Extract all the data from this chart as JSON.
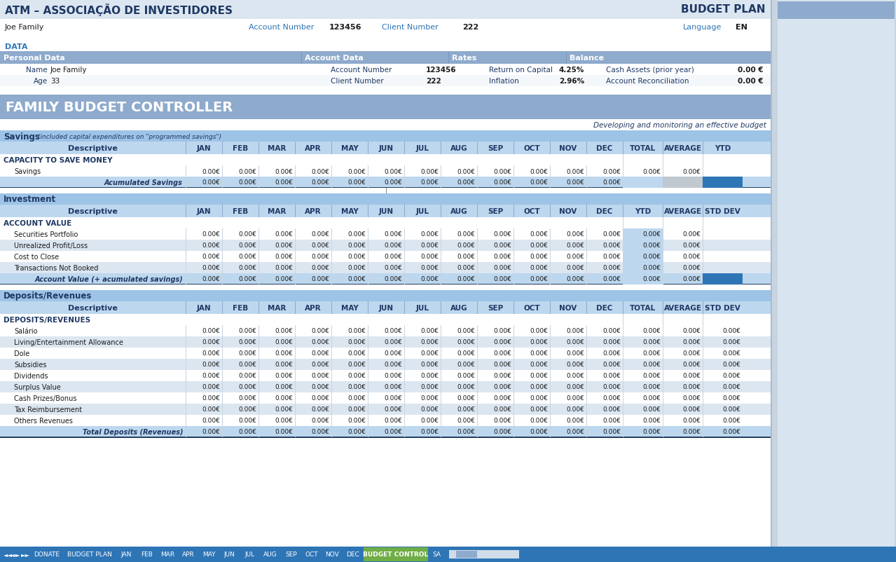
{
  "title_left": "ATM – ASSOCIAÇÃO DE INVESTIDORES",
  "title_right": "BUDGET PLAN",
  "row1_left": "Joe Family",
  "row1_mid1": "Account Number",
  "row1_mid2": "123456",
  "row1_mid3": "Client Number",
  "row1_mid4": "222",
  "row1_right1": "Language",
  "row1_right2": "EN",
  "data_label": "DATA",
  "section1_headers": [
    "Personal Data",
    "Account Data",
    "Rates",
    "Balance"
  ],
  "personal_name_label": "Name",
  "personal_name_value": "Joe Family",
  "personal_age_label": "Age",
  "personal_age_value": "33",
  "account_number_label": "Account Number",
  "account_number_value": "123456",
  "client_number_label": "Client Number",
  "client_number_value": "222",
  "return_label": "Return on Capital",
  "return_value": "4.25%",
  "inflation_label": "Inflation",
  "inflation_value": "2.96%",
  "cash_assets_label": "Cash Assets (prior year)",
  "cash_assets_value": "0.00 €",
  "account_rec_label": "Account Reconciliation",
  "account_rec_value": "0.00 €",
  "family_budget_title": "FAMILY BUDGET CONTROLLER",
  "subtitle": "Developing and monitoring an effective budget",
  "savings_section_title": "Savings",
  "savings_section_subtitle": "(included capital expenditures on \"programmed savings\")",
  "months": [
    "JAN",
    "FEB",
    "MAR",
    "APR",
    "MAY",
    "JUN",
    "JUL",
    "AUG",
    "SEP",
    "OCT",
    "NOV",
    "DEC"
  ],
  "savings_extra_cols": [
    "TOTAL",
    "AVERAGE",
    "YTD"
  ],
  "savings_rows": [
    {
      "label": "CAPACITY TO SAVE MONEY",
      "is_header": true,
      "values": []
    },
    {
      "label": "Savings",
      "indent": true,
      "values": [
        "0.00€",
        "0.00€",
        "0.00€",
        "0.00€",
        "0.00€",
        "0.00€",
        "0.00€",
        "0.00€",
        "0.00€",
        "0.00€",
        "0.00€",
        "0.00€",
        "0.00€",
        "0.00€"
      ]
    },
    {
      "label": "Acumulated Savings",
      "is_total": true,
      "values": [
        "0.00€",
        "0.00€",
        "0.00€",
        "0.00€",
        "0.00€",
        "0.00€",
        "0.00€",
        "0.00€",
        "0.00€",
        "0.00€",
        "0.00€",
        "0.00€"
      ]
    }
  ],
  "investment_section_title": "Investment",
  "investment_extra_cols": [
    "YTD",
    "AVERAGE",
    "STD DEV"
  ],
  "investment_rows": [
    {
      "label": "ACCOUNT VALUE",
      "is_header": true,
      "values": []
    },
    {
      "label": "Securities Portfolio",
      "indent": true,
      "values": [
        "0.00€",
        "0.00€",
        "0.00€",
        "0.00€",
        "0.00€",
        "0.00€",
        "0.00€",
        "0.00€",
        "0.00€",
        "0.00€",
        "0.00€",
        "0.00€",
        "0.00€",
        "0.00€"
      ]
    },
    {
      "label": "Unrealized Profit/Loss",
      "indent": true,
      "values": [
        "0.00€",
        "0.00€",
        "0.00€",
        "0.00€",
        "0.00€",
        "0.00€",
        "0.00€",
        "0.00€",
        "0.00€",
        "0.00€",
        "0.00€",
        "0.00€",
        "0.00€",
        "0.00€"
      ]
    },
    {
      "label": "Cost to Close",
      "indent": true,
      "values": [
        "0.00€",
        "0.00€",
        "0.00€",
        "0.00€",
        "0.00€",
        "0.00€",
        "0.00€",
        "0.00€",
        "0.00€",
        "0.00€",
        "0.00€",
        "0.00€",
        "0.00€",
        "0.00€"
      ]
    },
    {
      "label": "Transactions Not Booked",
      "indent": true,
      "values": [
        "0.00€",
        "0.00€",
        "0.00€",
        "0.00€",
        "0.00€",
        "0.00€",
        "0.00€",
        "0.00€",
        "0.00€",
        "0.00€",
        "0.00€",
        "0.00€",
        "0.00€",
        "0.00€"
      ]
    },
    {
      "label": "Account Value (+ acumulated savings)",
      "is_total": true,
      "values": [
        "0.00€",
        "0.00€",
        "0.00€",
        "0.00€",
        "0.00€",
        "0.00€",
        "0.00€",
        "0.00€",
        "0.00€",
        "0.00€",
        "0.00€",
        "0.00€",
        "0.00€",
        "0.00€"
      ]
    }
  ],
  "deposits_section_title": "Deposits/Revenues",
  "deposits_extra_cols": [
    "TOTAL",
    "AVERAGE",
    "STD DEV"
  ],
  "deposits_rows": [
    {
      "label": "DEPOSITS/REVENUES",
      "is_header": true,
      "values": []
    },
    {
      "label": "Salário",
      "indent": true,
      "values": [
        "0.00€",
        "0.00€",
        "0.00€",
        "0.00€",
        "0.00€",
        "0.00€",
        "0.00€",
        "0.00€",
        "0.00€",
        "0.00€",
        "0.00€",
        "0.00€",
        "0.00€",
        "0.00€",
        "0.00€"
      ]
    },
    {
      "label": "Living/Entertainment Allowance",
      "indent": true,
      "values": [
        "0.00€",
        "0.00€",
        "0.00€",
        "0.00€",
        "0.00€",
        "0.00€",
        "0.00€",
        "0.00€",
        "0.00€",
        "0.00€",
        "0.00€",
        "0.00€",
        "0.00€",
        "0.00€",
        "0.00€"
      ]
    },
    {
      "label": "Dole",
      "indent": true,
      "values": [
        "0.00€",
        "0.00€",
        "0.00€",
        "0.00€",
        "0.00€",
        "0.00€",
        "0.00€",
        "0.00€",
        "0.00€",
        "0.00€",
        "0.00€",
        "0.00€",
        "0.00€",
        "0.00€",
        "0.00€"
      ]
    },
    {
      "label": "Subsidies",
      "indent": true,
      "values": [
        "0.00€",
        "0.00€",
        "0.00€",
        "0.00€",
        "0.00€",
        "0.00€",
        "0.00€",
        "0.00€",
        "0.00€",
        "0.00€",
        "0.00€",
        "0.00€",
        "0.00€",
        "0.00€",
        "0.00€"
      ]
    },
    {
      "label": "Dividends",
      "indent": true,
      "values": [
        "0.00€",
        "0.00€",
        "0.00€",
        "0.00€",
        "0.00€",
        "0.00€",
        "0.00€",
        "0.00€",
        "0.00€",
        "0.00€",
        "0.00€",
        "0.00€",
        "0.00€",
        "0.00€",
        "0.00€"
      ]
    },
    {
      "label": "Surplus Value",
      "indent": true,
      "values": [
        "0.00€",
        "0.00€",
        "0.00€",
        "0.00€",
        "0.00€",
        "0.00€",
        "0.00€",
        "0.00€",
        "0.00€",
        "0.00€",
        "0.00€",
        "0.00€",
        "0.00€",
        "0.00€",
        "0.00€"
      ]
    },
    {
      "label": "Cash Prizes/Bonus",
      "indent": true,
      "values": [
        "0.00€",
        "0.00€",
        "0.00€",
        "0.00€",
        "0.00€",
        "0.00€",
        "0.00€",
        "0.00€",
        "0.00€",
        "0.00€",
        "0.00€",
        "0.00€",
        "0.00€",
        "0.00€",
        "0.00€"
      ]
    },
    {
      "label": "Tax Reimbursement",
      "indent": true,
      "values": [
        "0.00€",
        "0.00€",
        "0.00€",
        "0.00€",
        "0.00€",
        "0.00€",
        "0.00€",
        "0.00€",
        "0.00€",
        "0.00€",
        "0.00€",
        "0.00€",
        "0.00€",
        "0.00€",
        "0.00€"
      ]
    },
    {
      "label": "Others Revenues",
      "indent": true,
      "values": [
        "0.00€",
        "0.00€",
        "0.00€",
        "0.00€",
        "0.00€",
        "0.00€",
        "0.00€",
        "0.00€",
        "0.00€",
        "0.00€",
        "0.00€",
        "0.00€",
        "0.00€",
        "0.00€",
        "0.00€"
      ]
    },
    {
      "label": "Total Deposits (Revenues)",
      "is_total": true,
      "values": [
        "0.00€",
        "0.00€",
        "0.00€",
        "0.00€",
        "0.00€",
        "0.00€",
        "0.00€",
        "0.00€",
        "0.00€",
        "0.00€",
        "0.00€",
        "0.00€",
        "0.00€",
        "0.00€",
        "0.00€"
      ]
    }
  ],
  "tab_labels": [
    "DONATE",
    "BUDGET PLAN",
    "JAN",
    "FEB",
    "MAR",
    "APR",
    "MAY",
    "JUN",
    "JUL",
    "AUG",
    "SEP",
    "OCT",
    "NOV",
    "DEC",
    "BUDGET CONTROL",
    "SA"
  ],
  "tab_active": "BUDGET CONTROL",
  "colors": {
    "header_bg": "#dce6f1",
    "section_header_bg": "#8eaacc",
    "col_header_bg": "#bdd7ee",
    "light_blue_section": "#9dc3e6",
    "row_white": "#ffffff",
    "row_light": "#dce6f1",
    "total_row_bg": "#bdd7ee",
    "dark_blue": "#2e75b6",
    "navy": "#1f3864",
    "text_dark": "#1f3864",
    "text_black": "#1a1a1a",
    "text_blue": "#2e75b6",
    "border_light": "#c8d4e0",
    "border_dark": "#243f60",
    "family_budget_bg": "#8eaacc",
    "scrollbar_bg": "#c8d4e0",
    "scrollbar_thumb": "#8eaacc",
    "tab_bar": "#2e75b6",
    "tab_active_bg": "#70ad47"
  }
}
